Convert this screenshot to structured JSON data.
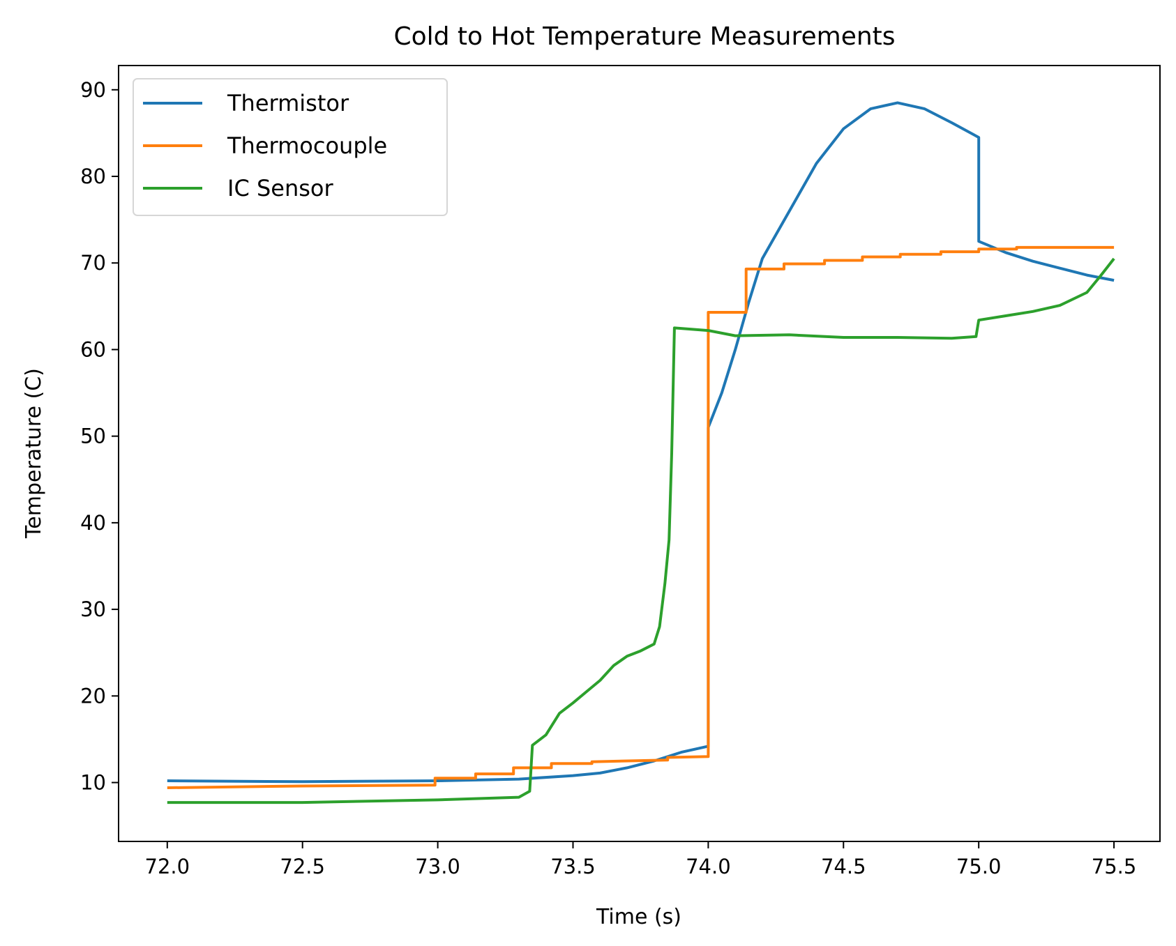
{
  "chart_data": {
    "type": "line",
    "title": "Cold to Hot Temperature Measurements",
    "xlabel": "Time (s)",
    "ylabel": "Temperature (C)",
    "xlim": [
      71.82,
      75.67
    ],
    "ylim": [
      3.2,
      92.8
    ],
    "xticks": [
      72.0,
      72.5,
      73.0,
      73.5,
      74.0,
      74.5,
      75.0,
      75.5
    ],
    "xtick_labels": [
      "72.0",
      "72.5",
      "73.0",
      "73.5",
      "74.0",
      "74.5",
      "75.0",
      "75.5"
    ],
    "yticks": [
      10,
      20,
      30,
      40,
      50,
      60,
      70,
      80,
      90
    ],
    "ytick_labels": [
      "10",
      "20",
      "30",
      "40",
      "50",
      "60",
      "70",
      "80",
      "90"
    ],
    "grid": false,
    "legend_position": "top-left",
    "series": [
      {
        "name": "Thermistor",
        "color": "#1f77b4",
        "points": [
          [
            72.0,
            10.2
          ],
          [
            72.5,
            10.1
          ],
          [
            73.0,
            10.2
          ],
          [
            73.3,
            10.4
          ],
          [
            73.5,
            10.8
          ],
          [
            73.6,
            11.1
          ],
          [
            73.7,
            11.7
          ],
          [
            73.8,
            12.5
          ],
          [
            73.9,
            13.5
          ],
          [
            74.0,
            14.2
          ],
          [
            74.0,
            51.0
          ],
          [
            74.05,
            55.0
          ],
          [
            74.1,
            60.0
          ],
          [
            74.15,
            65.5
          ],
          [
            74.2,
            70.5
          ],
          [
            74.3,
            76.0
          ],
          [
            74.4,
            81.5
          ],
          [
            74.5,
            85.5
          ],
          [
            74.6,
            87.8
          ],
          [
            74.7,
            88.5
          ],
          [
            74.8,
            87.8
          ],
          [
            74.9,
            86.2
          ],
          [
            75.0,
            84.5
          ],
          [
            75.0,
            72.5
          ],
          [
            75.1,
            71.2
          ],
          [
            75.2,
            70.2
          ],
          [
            75.3,
            69.4
          ],
          [
            75.4,
            68.6
          ],
          [
            75.5,
            68.0
          ]
        ]
      },
      {
        "name": "Thermocouple",
        "color": "#ff7f0e",
        "points": [
          [
            72.0,
            9.4
          ],
          [
            72.5,
            9.6
          ],
          [
            72.99,
            9.7
          ],
          [
            72.99,
            10.5
          ],
          [
            73.14,
            10.5
          ],
          [
            73.14,
            11.0
          ],
          [
            73.28,
            11.0
          ],
          [
            73.28,
            11.7
          ],
          [
            73.42,
            11.7
          ],
          [
            73.42,
            12.2
          ],
          [
            73.57,
            12.2
          ],
          [
            73.57,
            12.4
          ],
          [
            73.85,
            12.6
          ],
          [
            73.85,
            12.9
          ],
          [
            74.0,
            13.0
          ],
          [
            74.0,
            64.3
          ],
          [
            74.14,
            64.3
          ],
          [
            74.14,
            69.3
          ],
          [
            74.28,
            69.3
          ],
          [
            74.28,
            69.9
          ],
          [
            74.43,
            69.9
          ],
          [
            74.43,
            70.3
          ],
          [
            74.57,
            70.3
          ],
          [
            74.57,
            70.7
          ],
          [
            74.71,
            70.7
          ],
          [
            74.71,
            71.0
          ],
          [
            74.86,
            71.0
          ],
          [
            74.86,
            71.3
          ],
          [
            75.0,
            71.3
          ],
          [
            75.0,
            71.6
          ],
          [
            75.14,
            71.6
          ],
          [
            75.14,
            71.8
          ],
          [
            75.5,
            71.8
          ]
        ]
      },
      {
        "name": "IC Sensor",
        "color": "#2ca02c",
        "points": [
          [
            72.0,
            7.7
          ],
          [
            72.5,
            7.7
          ],
          [
            73.0,
            8.0
          ],
          [
            73.3,
            8.3
          ],
          [
            73.34,
            9.0
          ],
          [
            73.35,
            14.3
          ],
          [
            73.4,
            15.5
          ],
          [
            73.45,
            18.0
          ],
          [
            73.5,
            19.2
          ],
          [
            73.55,
            20.5
          ],
          [
            73.6,
            21.8
          ],
          [
            73.65,
            23.5
          ],
          [
            73.7,
            24.6
          ],
          [
            73.75,
            25.2
          ],
          [
            73.8,
            26.0
          ],
          [
            73.82,
            28.0
          ],
          [
            73.84,
            33.0
          ],
          [
            73.855,
            38.0
          ],
          [
            73.865,
            48.0
          ],
          [
            73.875,
            62.5
          ],
          [
            74.0,
            62.2
          ],
          [
            74.1,
            61.6
          ],
          [
            74.3,
            61.7
          ],
          [
            74.5,
            61.4
          ],
          [
            74.7,
            61.4
          ],
          [
            74.9,
            61.3
          ],
          [
            74.99,
            61.5
          ],
          [
            75.0,
            63.4
          ],
          [
            75.1,
            63.9
          ],
          [
            75.2,
            64.4
          ],
          [
            75.3,
            65.1
          ],
          [
            75.4,
            66.6
          ],
          [
            75.45,
            68.5
          ],
          [
            75.5,
            70.5
          ]
        ]
      }
    ]
  }
}
